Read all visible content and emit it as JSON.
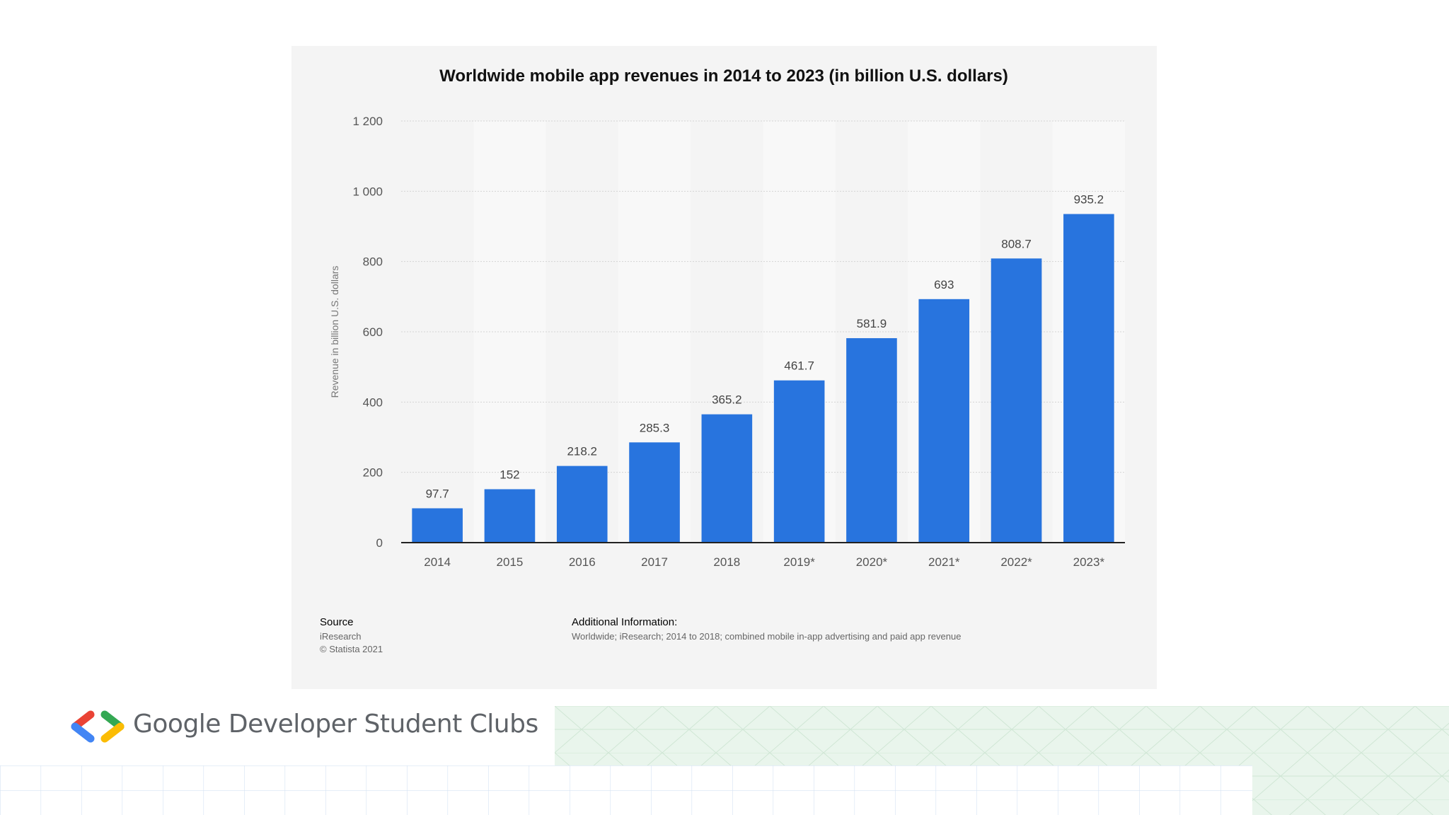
{
  "chart_data": {
    "type": "bar",
    "title": "Worldwide mobile app revenues in 2014 to 2023 (in billion U.S. dollars)",
    "ylabel": "Revenue in billion U.S. dollars",
    "xlabel": "",
    "categories": [
      "2014",
      "2015",
      "2016",
      "2017",
      "2018",
      "2019*",
      "2020*",
      "2021*",
      "2022*",
      "2023*"
    ],
    "values": [
      97.7,
      152,
      218.2,
      285.3,
      365.2,
      461.7,
      581.9,
      693,
      808.7,
      935.2
    ],
    "value_labels": [
      "97.7",
      "152",
      "218.2",
      "285.3",
      "365.2",
      "461.7",
      "581.9",
      "693",
      "808.7",
      "935.2"
    ],
    "ylim": [
      0,
      1200
    ],
    "yticks": [
      0,
      200,
      400,
      600,
      800,
      1000,
      1200
    ],
    "ytick_labels": [
      "0",
      "200",
      "400",
      "600",
      "800",
      "1 000",
      "1 200"
    ],
    "grid": true,
    "bar_color": "#2874de"
  },
  "footer": {
    "source_heading": "Source",
    "source_name": "iResearch",
    "copyright": "© Statista 2021",
    "info_heading": "Additional Information:",
    "info_text": "Worldwide; iResearch; 2014 to 2018; combined mobile in-app advertising and paid app revenue"
  },
  "brand": {
    "name": "Google Developer Student Clubs",
    "logo_icon": "gdsc-logo-icon",
    "colors": [
      "#ea4335",
      "#4285f4",
      "#34a853",
      "#fbbc04"
    ]
  }
}
